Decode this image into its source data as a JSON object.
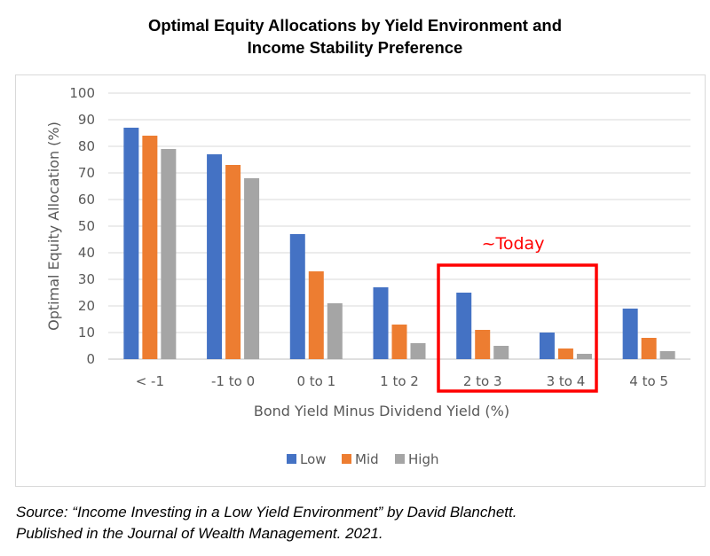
{
  "header": {
    "title_line1": "Optimal Equity Allocations by Yield Environment and",
    "title_line2": "Income Stability Preference"
  },
  "chart_data": {
    "type": "bar",
    "title": "Optimal Equity Allocations by Yield Environment and Income Stability Preference",
    "xlabel": "Bond Yield Minus Dividend Yield (%)",
    "ylabel": "Optimal Equity Allocation (%)",
    "ylim": [
      0,
      100
    ],
    "yticks": [
      0,
      10,
      20,
      30,
      40,
      50,
      60,
      70,
      80,
      90,
      100
    ],
    "categories": [
      "< -1",
      "-1 to 0",
      "0 to 1",
      "1 to 2",
      "2 to 3",
      "3 to 4",
      "4 to 5"
    ],
    "series": [
      {
        "name": "Low",
        "color": "#4472c4",
        "values": [
          87,
          77,
          47,
          27,
          25,
          10,
          19
        ]
      },
      {
        "name": "Mid",
        "color": "#ed7d31",
        "values": [
          84,
          73,
          33,
          13,
          11,
          4,
          8
        ]
      },
      {
        "name": "High",
        "color": "#a5a5a5",
        "values": [
          79,
          68,
          21,
          6,
          5,
          2,
          3
        ]
      }
    ],
    "grid": true,
    "legend": "bottom",
    "annotation": {
      "text": "~Today",
      "color": "#ff0000",
      "highlight_categories": [
        "2 to 3",
        "3 to 4"
      ]
    }
  },
  "source": {
    "line1": "Source: “Income Investing in a Low Yield Environment” by David Blanchett.",
    "line2": "Published in the Journal of Wealth Management. 2021."
  }
}
